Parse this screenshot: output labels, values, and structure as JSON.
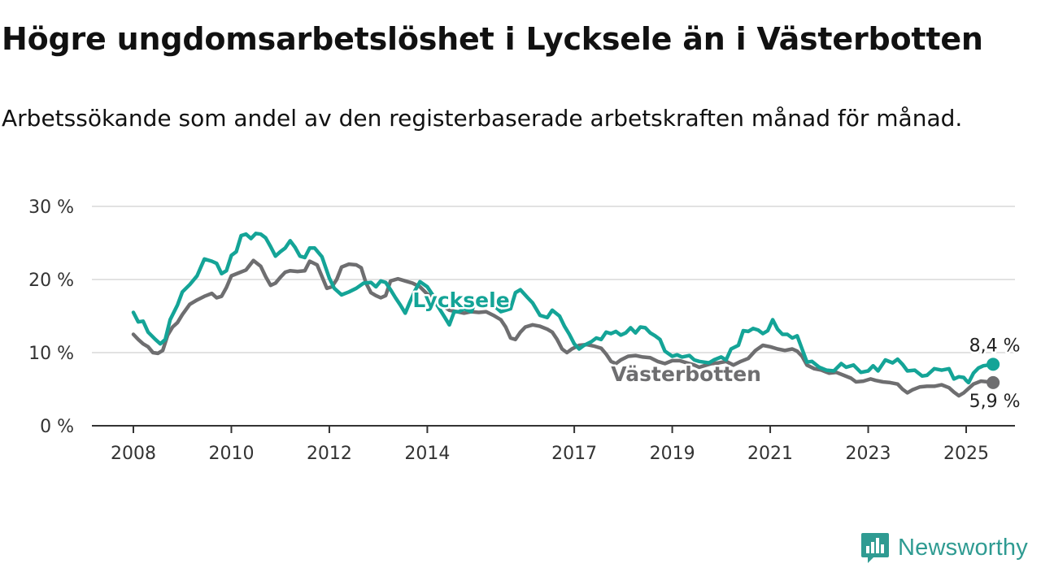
{
  "title": "Högre ungdomsarbetslöshet i Lycksele än i Västerbotten",
  "subtitle": "Arbetssökande som andel av den registerbaserade arbetskraften månad för månad.",
  "brand": {
    "name": "Newsworthy",
    "icon": "newsworthy-logo-icon",
    "color": "#2f9b92"
  },
  "chart_data": {
    "type": "line",
    "ylim": [
      0,
      30
    ],
    "ytick_labels": [
      "0 %",
      "10 %",
      "20 %",
      "30 %"
    ],
    "yticks": [
      0,
      10,
      20,
      30
    ],
    "xlim": [
      2007.4,
      2026.0
    ],
    "xticks": [
      2008,
      2010,
      2012,
      2014,
      2017,
      2019,
      2021,
      2023,
      2025
    ],
    "xtick_labels": [
      "2008",
      "2010",
      "2012",
      "2014",
      "2017",
      "2019",
      "2021",
      "2023",
      "2025"
    ],
    "grid": true,
    "series": [
      {
        "name": "Lycksele",
        "color": "#14a497",
        "end_label": "8,4 %",
        "points": [
          [
            2008.0,
            15.5
          ],
          [
            2008.1,
            14.2
          ],
          [
            2008.2,
            14.3
          ],
          [
            2008.3,
            12.8
          ],
          [
            2008.45,
            11.8
          ],
          [
            2008.55,
            11.2
          ],
          [
            2008.65,
            11.8
          ],
          [
            2008.75,
            14.5
          ],
          [
            2008.9,
            16.5
          ],
          [
            2009.0,
            18.3
          ],
          [
            2009.15,
            19.3
          ],
          [
            2009.3,
            20.5
          ],
          [
            2009.45,
            22.8
          ],
          [
            2009.6,
            22.5
          ],
          [
            2009.7,
            22.2
          ],
          [
            2009.8,
            20.8
          ],
          [
            2009.9,
            21.2
          ],
          [
            2010.0,
            23.3
          ],
          [
            2010.1,
            23.8
          ],
          [
            2010.2,
            26.0
          ],
          [
            2010.3,
            26.2
          ],
          [
            2010.4,
            25.6
          ],
          [
            2010.5,
            26.3
          ],
          [
            2010.6,
            26.2
          ],
          [
            2010.7,
            25.7
          ],
          [
            2010.8,
            24.5
          ],
          [
            2010.9,
            23.2
          ],
          [
            2011.0,
            23.8
          ],
          [
            2011.1,
            24.3
          ],
          [
            2011.2,
            25.3
          ],
          [
            2011.3,
            24.4
          ],
          [
            2011.4,
            23.2
          ],
          [
            2011.5,
            23.0
          ],
          [
            2011.6,
            24.3
          ],
          [
            2011.7,
            24.3
          ],
          [
            2011.85,
            23.1
          ],
          [
            2012.0,
            20.2
          ],
          [
            2012.1,
            18.8
          ],
          [
            2012.25,
            17.9
          ],
          [
            2012.4,
            18.3
          ],
          [
            2012.55,
            18.8
          ],
          [
            2012.7,
            19.5
          ],
          [
            2012.85,
            19.6
          ],
          [
            2012.95,
            19.0
          ],
          [
            2013.05,
            19.8
          ],
          [
            2013.15,
            19.6
          ],
          [
            2013.25,
            18.6
          ],
          [
            2013.35,
            17.5
          ],
          [
            2013.45,
            16.5
          ],
          [
            2013.55,
            15.4
          ],
          [
            2013.65,
            17.0
          ],
          [
            2013.75,
            18.5
          ],
          [
            2013.85,
            19.7
          ],
          [
            2014.0,
            19.0
          ],
          [
            2014.1,
            18.0
          ],
          [
            2014.2,
            16.5
          ],
          [
            2014.35,
            14.9
          ],
          [
            2014.45,
            13.8
          ],
          [
            2014.55,
            15.6
          ],
          [
            2014.65,
            15.6
          ],
          [
            2014.75,
            16.0
          ],
          [
            2014.9,
            15.6
          ],
          [
            2015.0,
            17.3
          ],
          [
            2015.15,
            17.2
          ],
          [
            2015.35,
            16.5
          ],
          [
            2015.5,
            15.6
          ],
          [
            2015.6,
            15.8
          ],
          [
            2015.7,
            16.0
          ],
          [
            2015.8,
            18.2
          ],
          [
            2015.9,
            18.6
          ],
          [
            2016.05,
            17.5
          ],
          [
            2016.15,
            16.8
          ],
          [
            2016.3,
            15.1
          ],
          [
            2016.45,
            14.8
          ],
          [
            2016.55,
            15.8
          ],
          [
            2016.7,
            15.0
          ],
          [
            2016.8,
            13.6
          ],
          [
            2016.9,
            12.5
          ],
          [
            2017.0,
            11.2
          ],
          [
            2017.1,
            10.5
          ],
          [
            2017.2,
            11.0
          ],
          [
            2017.35,
            11.5
          ],
          [
            2017.45,
            12.0
          ],
          [
            2017.55,
            11.8
          ],
          [
            2017.65,
            12.8
          ],
          [
            2017.75,
            12.6
          ],
          [
            2017.85,
            12.9
          ],
          [
            2017.95,
            12.4
          ],
          [
            2018.05,
            12.7
          ],
          [
            2018.15,
            13.4
          ],
          [
            2018.25,
            12.7
          ],
          [
            2018.35,
            13.5
          ],
          [
            2018.45,
            13.4
          ],
          [
            2018.55,
            12.7
          ],
          [
            2018.65,
            12.3
          ],
          [
            2018.75,
            11.8
          ],
          [
            2018.85,
            10.2
          ],
          [
            2019.0,
            9.5
          ],
          [
            2019.1,
            9.7
          ],
          [
            2019.2,
            9.4
          ],
          [
            2019.35,
            9.6
          ],
          [
            2019.45,
            9.0
          ],
          [
            2019.55,
            8.8
          ],
          [
            2019.65,
            8.7
          ],
          [
            2019.75,
            8.6
          ],
          [
            2019.85,
            9.0
          ],
          [
            2020.0,
            9.4
          ],
          [
            2020.1,
            9.0
          ],
          [
            2020.2,
            10.5
          ],
          [
            2020.35,
            11.0
          ],
          [
            2020.45,
            13.0
          ],
          [
            2020.55,
            12.9
          ],
          [
            2020.65,
            13.3
          ],
          [
            2020.75,
            13.1
          ],
          [
            2020.85,
            12.6
          ],
          [
            2020.95,
            13.0
          ],
          [
            2021.05,
            14.5
          ],
          [
            2021.15,
            13.2
          ],
          [
            2021.25,
            12.5
          ],
          [
            2021.35,
            12.5
          ],
          [
            2021.45,
            12.0
          ],
          [
            2021.55,
            12.3
          ],
          [
            2021.65,
            10.5
          ],
          [
            2021.75,
            8.7
          ],
          [
            2021.85,
            8.8
          ],
          [
            2022.0,
            8.0
          ],
          [
            2022.15,
            7.6
          ],
          [
            2022.3,
            7.5
          ],
          [
            2022.45,
            8.5
          ],
          [
            2022.55,
            8.0
          ],
          [
            2022.7,
            8.3
          ],
          [
            2022.85,
            7.3
          ],
          [
            2023.0,
            7.5
          ],
          [
            2023.1,
            8.2
          ],
          [
            2023.2,
            7.5
          ],
          [
            2023.35,
            9.0
          ],
          [
            2023.5,
            8.6
          ],
          [
            2023.6,
            9.1
          ],
          [
            2023.7,
            8.4
          ],
          [
            2023.8,
            7.5
          ],
          [
            2023.95,
            7.6
          ],
          [
            2024.1,
            6.8
          ],
          [
            2024.2,
            6.9
          ],
          [
            2024.35,
            7.8
          ],
          [
            2024.5,
            7.6
          ],
          [
            2024.65,
            7.8
          ],
          [
            2024.75,
            6.4
          ],
          [
            2024.85,
            6.7
          ],
          [
            2024.95,
            6.6
          ],
          [
            2025.0,
            6.2
          ],
          [
            2025.05,
            5.9
          ],
          [
            2025.15,
            7.2
          ],
          [
            2025.25,
            7.9
          ],
          [
            2025.35,
            8.2
          ],
          [
            2025.45,
            8.3
          ],
          [
            2025.55,
            8.4
          ]
        ]
      },
      {
        "name": "Västerbotten",
        "color": "#6e6e70",
        "end_label": "5,9 %",
        "points": [
          [
            2008.0,
            12.5
          ],
          [
            2008.1,
            11.8
          ],
          [
            2008.2,
            11.2
          ],
          [
            2008.3,
            10.8
          ],
          [
            2008.4,
            10.0
          ],
          [
            2008.5,
            9.9
          ],
          [
            2008.6,
            10.3
          ],
          [
            2008.7,
            12.4
          ],
          [
            2008.8,
            13.5
          ],
          [
            2008.9,
            14.1
          ],
          [
            2009.0,
            15.2
          ],
          [
            2009.15,
            16.6
          ],
          [
            2009.3,
            17.2
          ],
          [
            2009.45,
            17.7
          ],
          [
            2009.6,
            18.1
          ],
          [
            2009.7,
            17.5
          ],
          [
            2009.8,
            17.7
          ],
          [
            2009.9,
            18.9
          ],
          [
            2010.0,
            20.5
          ],
          [
            2010.15,
            20.9
          ],
          [
            2010.3,
            21.3
          ],
          [
            2010.45,
            22.6
          ],
          [
            2010.6,
            21.8
          ],
          [
            2010.7,
            20.4
          ],
          [
            2010.8,
            19.2
          ],
          [
            2010.9,
            19.5
          ],
          [
            2011.0,
            20.3
          ],
          [
            2011.1,
            21.0
          ],
          [
            2011.2,
            21.2
          ],
          [
            2011.35,
            21.1
          ],
          [
            2011.5,
            21.2
          ],
          [
            2011.6,
            22.5
          ],
          [
            2011.75,
            22.0
          ],
          [
            2011.85,
            20.4
          ],
          [
            2011.95,
            18.8
          ],
          [
            2012.05,
            19.0
          ],
          [
            2012.15,
            20.0
          ],
          [
            2012.25,
            21.7
          ],
          [
            2012.4,
            22.1
          ],
          [
            2012.55,
            22.0
          ],
          [
            2012.65,
            21.6
          ],
          [
            2012.75,
            19.5
          ],
          [
            2012.85,
            18.2
          ],
          [
            2012.95,
            17.8
          ],
          [
            2013.05,
            17.5
          ],
          [
            2013.15,
            17.8
          ],
          [
            2013.25,
            19.8
          ],
          [
            2013.4,
            20.1
          ],
          [
            2013.55,
            19.8
          ],
          [
            2013.7,
            19.5
          ],
          [
            2013.85,
            19.0
          ],
          [
            2014.0,
            18.0
          ],
          [
            2014.15,
            17.5
          ],
          [
            2014.3,
            16.5
          ],
          [
            2014.45,
            15.8
          ],
          [
            2014.6,
            15.6
          ],
          [
            2014.75,
            15.4
          ],
          [
            2014.9,
            15.6
          ],
          [
            2015.05,
            15.5
          ],
          [
            2015.2,
            15.6
          ],
          [
            2015.35,
            15.1
          ],
          [
            2015.5,
            14.5
          ],
          [
            2015.6,
            13.5
          ],
          [
            2015.7,
            12.0
          ],
          [
            2015.8,
            11.8
          ],
          [
            2015.9,
            12.8
          ],
          [
            2016.0,
            13.5
          ],
          [
            2016.15,
            13.8
          ],
          [
            2016.3,
            13.6
          ],
          [
            2016.45,
            13.2
          ],
          [
            2016.55,
            12.8
          ],
          [
            2016.65,
            11.8
          ],
          [
            2016.75,
            10.5
          ],
          [
            2016.85,
            10.0
          ],
          [
            2016.95,
            10.5
          ],
          [
            2017.1,
            11.0
          ],
          [
            2017.25,
            11.1
          ],
          [
            2017.4,
            10.9
          ],
          [
            2017.55,
            10.6
          ],
          [
            2017.65,
            9.8
          ],
          [
            2017.75,
            8.8
          ],
          [
            2017.85,
            8.5
          ],
          [
            2017.95,
            9.0
          ],
          [
            2018.1,
            9.5
          ],
          [
            2018.25,
            9.6
          ],
          [
            2018.4,
            9.4
          ],
          [
            2018.55,
            9.3
          ],
          [
            2018.7,
            8.8
          ],
          [
            2018.85,
            8.5
          ],
          [
            2019.0,
            8.9
          ],
          [
            2019.15,
            8.9
          ],
          [
            2019.3,
            8.6
          ],
          [
            2019.45,
            8.3
          ],
          [
            2019.55,
            8.0
          ],
          [
            2019.65,
            8.2
          ],
          [
            2019.8,
            8.5
          ],
          [
            2019.95,
            8.6
          ],
          [
            2020.1,
            8.8
          ],
          [
            2020.25,
            8.3
          ],
          [
            2020.4,
            8.8
          ],
          [
            2020.55,
            9.2
          ],
          [
            2020.7,
            10.3
          ],
          [
            2020.85,
            11.0
          ],
          [
            2021.0,
            10.8
          ],
          [
            2021.15,
            10.5
          ],
          [
            2021.3,
            10.3
          ],
          [
            2021.45,
            10.5
          ],
          [
            2021.55,
            10.2
          ],
          [
            2021.65,
            9.5
          ],
          [
            2021.75,
            8.3
          ],
          [
            2021.9,
            7.8
          ],
          [
            2022.05,
            7.6
          ],
          [
            2022.2,
            7.2
          ],
          [
            2022.35,
            7.3
          ],
          [
            2022.5,
            6.9
          ],
          [
            2022.65,
            6.5
          ],
          [
            2022.75,
            6.0
          ],
          [
            2022.9,
            6.1
          ],
          [
            2023.05,
            6.4
          ],
          [
            2023.15,
            6.2
          ],
          [
            2023.3,
            6.0
          ],
          [
            2023.45,
            5.9
          ],
          [
            2023.6,
            5.7
          ],
          [
            2023.7,
            5.0
          ],
          [
            2023.8,
            4.5
          ],
          [
            2023.9,
            4.9
          ],
          [
            2024.05,
            5.3
          ],
          [
            2024.2,
            5.4
          ],
          [
            2024.35,
            5.4
          ],
          [
            2024.5,
            5.6
          ],
          [
            2024.65,
            5.2
          ],
          [
            2024.75,
            4.6
          ],
          [
            2024.85,
            4.1
          ],
          [
            2024.95,
            4.5
          ],
          [
            2025.05,
            5.1
          ],
          [
            2025.15,
            5.7
          ],
          [
            2025.3,
            6.1
          ],
          [
            2025.45,
            6.0
          ],
          [
            2025.55,
            5.9
          ]
        ]
      }
    ]
  }
}
